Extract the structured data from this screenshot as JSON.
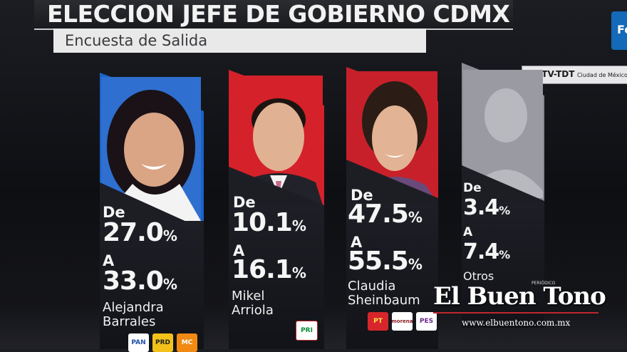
{
  "header": {
    "title": "ELECCION JEFE DE GOBIERNO CDMX",
    "subtitle": "Encuesta de Salida"
  },
  "station": {
    "callsign": "XHTV-TDT",
    "city": "Ciudad de México"
  },
  "corner_badge": "Fo",
  "labels": {
    "from": "De",
    "to": "A",
    "pct": "%"
  },
  "candidates": [
    {
      "name_line1": "Alejandra",
      "name_line2": "Barrales",
      "from": "27.0",
      "to": "33.0",
      "color": "#1b62c8",
      "parties": [
        "PAN",
        "PRD",
        "MC"
      ]
    },
    {
      "name_line1": "Mikel",
      "name_line2": "Arriola",
      "from": "10.1",
      "to": "16.1",
      "color": "#d4212a",
      "parties": [
        "PRI"
      ]
    },
    {
      "name_line1": "Claudia",
      "name_line2": "Sheinbaum",
      "from": "47.5",
      "to": "55.5",
      "color": "#c8202a",
      "parties": [
        "PT",
        "morena",
        "PES"
      ]
    },
    {
      "name_line1": "Otros",
      "name_line2": "",
      "from": "3.4",
      "to": "7.4",
      "color": "#8a8b92",
      "parties": []
    }
  ],
  "watermark": {
    "tag": "PERIÓDICO",
    "name": "El Buen Tono",
    "url": "www.elbuentono.com.mx"
  },
  "colors": {
    "pan": "#1f4fa8",
    "prd": "#f2c21b",
    "mc": "#f08a12",
    "pri": "#ffffff",
    "pt": "#d6262b",
    "morena": "#ffffff",
    "pes": "#ffffff"
  }
}
